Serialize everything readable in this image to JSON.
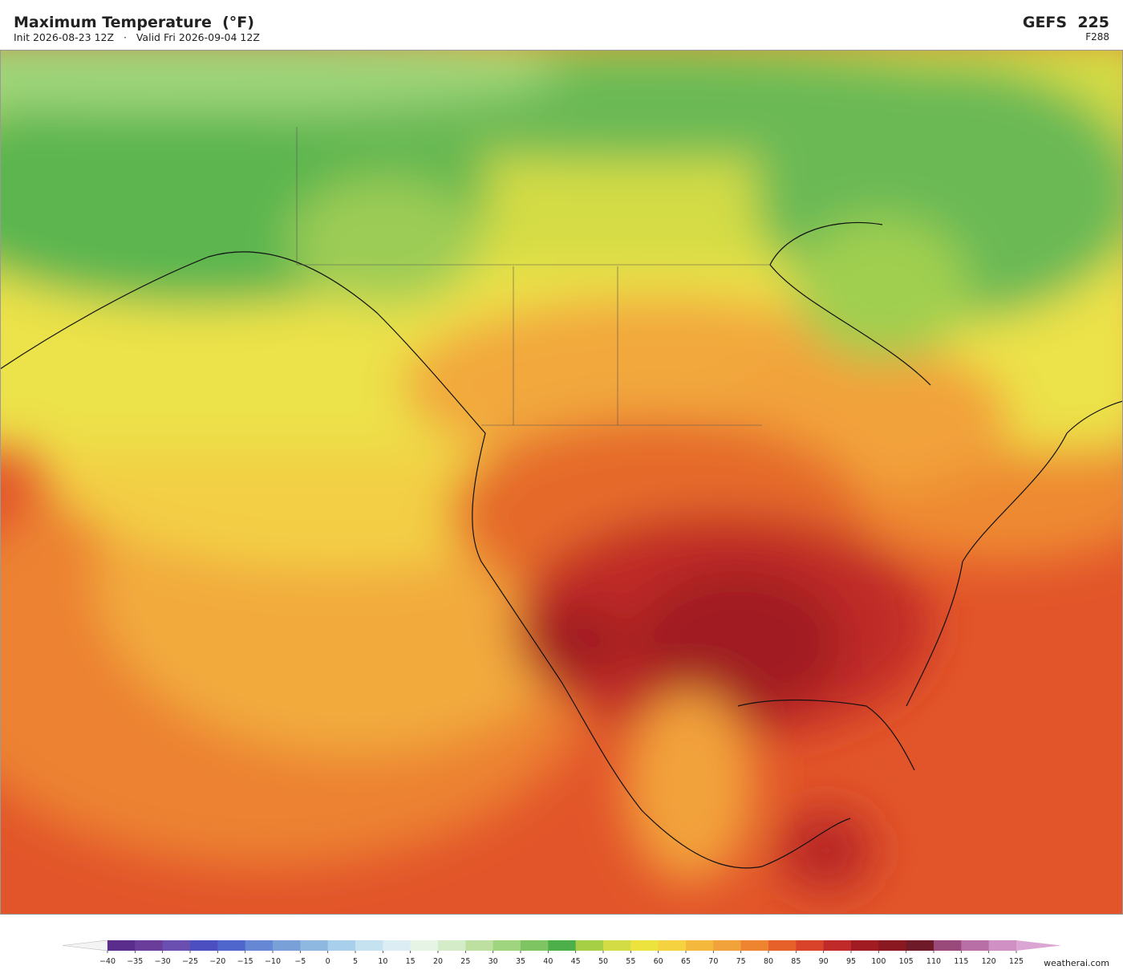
{
  "header": {
    "title": "Maximum Temperature  (°F)",
    "subtitle": "Init 2026-08-23 12Z   ·   Valid Fri 2026-09-04 12Z",
    "model": "GEFS  225",
    "forecast_hour": "F288"
  },
  "colorbar": {
    "ticks": [
      {
        "value": -40,
        "label": "−40"
      },
      {
        "value": -35,
        "label": "−35"
      },
      {
        "value": -30,
        "label": "−30"
      },
      {
        "value": -25,
        "label": "−25"
      },
      {
        "value": -20,
        "label": "−20"
      },
      {
        "value": -15,
        "label": "−15"
      },
      {
        "value": -10,
        "label": "−10"
      },
      {
        "value": -5,
        "label": "−5"
      },
      0,
      5,
      10,
      15,
      20,
      25,
      30,
      35,
      40,
      45,
      50,
      55,
      60,
      65,
      70,
      75,
      80,
      85,
      90,
      95,
      100,
      105,
      110,
      115,
      120,
      125
    ],
    "colors": [
      "#5a2d8c",
      "#6a3d9a",
      "#6a4fb0",
      "#4b4fc0",
      "#4f66cc",
      "#6688d4",
      "#7aa0d8",
      "#8fb8e0",
      "#a8d0ec",
      "#c4e2f0",
      "#dcedf4",
      "#e6f4e6",
      "#d4ecc8",
      "#bde0a0",
      "#a0d580",
      "#7fc462",
      "#4caf4a",
      "#a6cf45",
      "#d4dc45",
      "#ece33f",
      "#f5d340",
      "#f4b83c",
      "#f2a23a",
      "#ee8430",
      "#e6602a",
      "#d8432a",
      "#c02a28",
      "#a01c22",
      "#8a1820",
      "#6e1a28",
      "#9a4a7a",
      "#b86fa6",
      "#d090c4"
    ],
    "under_color": "#f4f4f4",
    "over_color": "#dca6d4"
  },
  "watermark": "weatherai.com"
}
